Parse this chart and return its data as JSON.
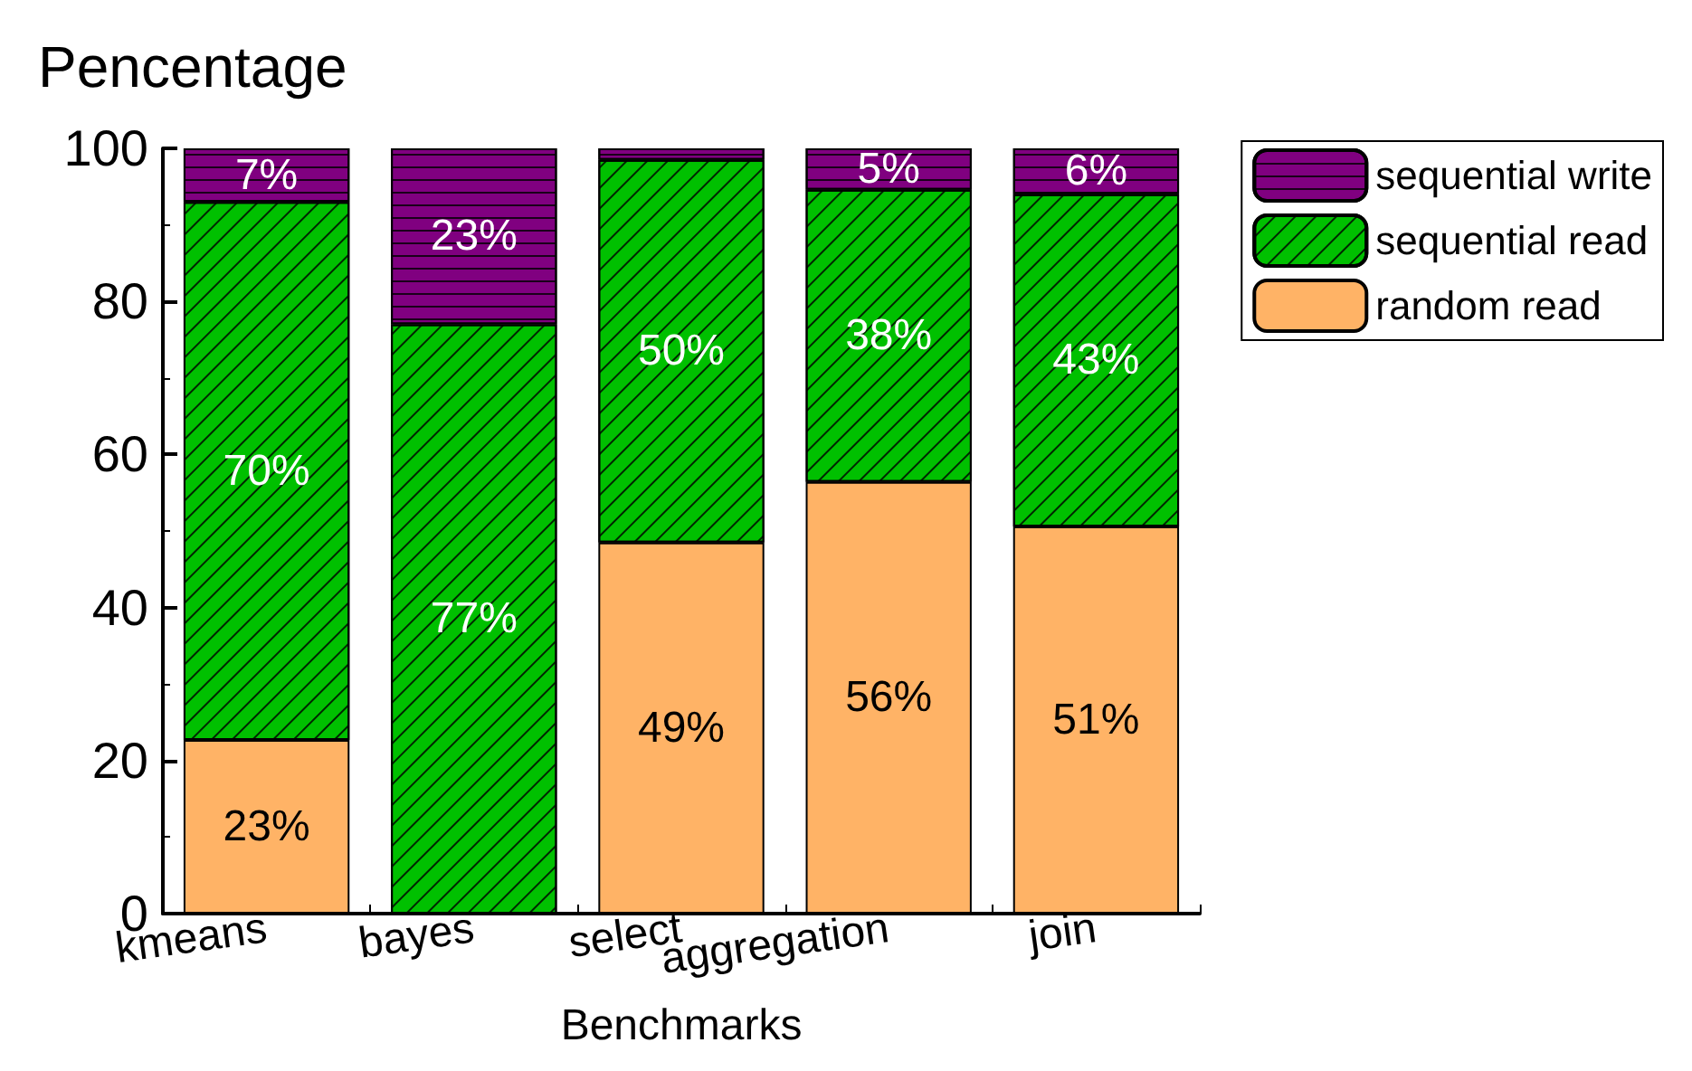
{
  "chart_data": {
    "type": "bar",
    "stacked": true,
    "xlabel": "Benchmarks",
    "ylabel": "Pencentage",
    "categories": [
      "kmeans",
      "bayes",
      "select",
      "aggregation",
      "join"
    ],
    "series": [
      {
        "name": "random read",
        "color": "#ffb366",
        "values": [
          22.7,
          0,
          48.5,
          56.4,
          50.6
        ],
        "value_labels": [
          "23%",
          null,
          "49%",
          "56%",
          "51%"
        ]
      },
      {
        "name": "sequential read",
        "color": "#00c000",
        "values": [
          70.3,
          77,
          50,
          38.2,
          43.4
        ],
        "value_labels": [
          "70%",
          "77%",
          "50%",
          "38%",
          "43%"
        ]
      },
      {
        "name": "sequential write",
        "color": "#800080",
        "values": [
          7,
          23,
          1.5,
          5.4,
          6
        ],
        "value_labels": [
          "7%",
          "23%",
          null,
          "5%",
          "6%"
        ]
      }
    ],
    "ylim": [
      0,
      100
    ],
    "yticks": [
      0,
      20,
      40,
      60,
      80,
      100
    ],
    "grid": false,
    "legend": "top right"
  }
}
